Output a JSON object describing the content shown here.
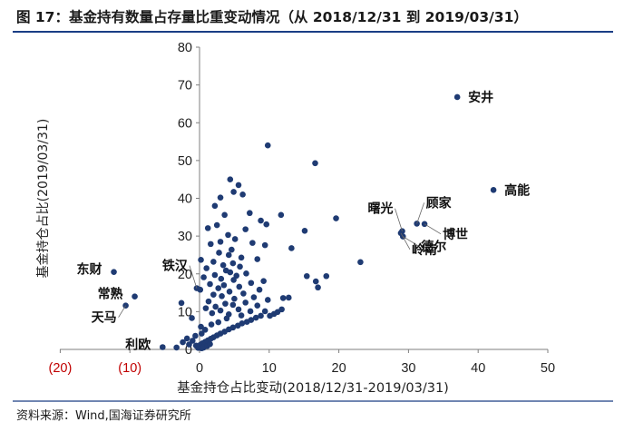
{
  "header": {
    "title": "图 17：基金持有数量占存量比重变动情况（从 2018/12/31 到 2019/03/31）"
  },
  "footer": {
    "source": "资料来源：Wind,国海证券研究所"
  },
  "chart_data": {
    "type": "scatter",
    "title": "",
    "xlabel": "基金持仓占比变动(2018/12/31-2019/03/31)",
    "ylabel": "基金持仓占比(2019/03/31)",
    "xlim": [
      -20,
      50
    ],
    "ylim": [
      0,
      80
    ],
    "x_ticks": [
      {
        "v": -20,
        "label": "(20)"
      },
      {
        "v": -10,
        "label": "(10)"
      },
      {
        "v": 0,
        "label": "0"
      },
      {
        "v": 10,
        "label": "10"
      },
      {
        "v": 20,
        "label": "20"
      },
      {
        "v": 30,
        "label": "30"
      },
      {
        "v": 40,
        "label": "40"
      },
      {
        "v": 50,
        "label": "50"
      }
    ],
    "y_ticks": [
      0,
      10,
      20,
      30,
      40,
      50,
      60,
      70,
      80
    ],
    "grid": false,
    "colors": {
      "point": "#1f3b73",
      "negative_tick": "#c00000",
      "axis": "#7f7f7f"
    },
    "labeled_points": [
      {
        "name": "安井",
        "x": 37.0,
        "y": 66.8,
        "label_side": "right"
      },
      {
        "name": "高能",
        "x": 42.2,
        "y": 42.2,
        "label_side": "right"
      },
      {
        "name": "顾家",
        "x": 31.2,
        "y": 33.3,
        "label_side": "above-right"
      },
      {
        "name": "博世",
        "x": 32.3,
        "y": 33.2,
        "label_side": "right-below"
      },
      {
        "name": "曙光",
        "x": 29.1,
        "y": 31.3,
        "label_side": "above-left"
      },
      {
        "name": "德尔",
        "x": 29.2,
        "y": 29.9,
        "label_side": "right-below"
      },
      {
        "name": "岭南",
        "x": 28.9,
        "y": 30.8,
        "label_side": "below-right"
      },
      {
        "name": "东财",
        "x": -12.3,
        "y": 20.5,
        "label_side": "left"
      },
      {
        "name": "铁汉",
        "x": -0.4,
        "y": 16.2,
        "label_side": "above-left"
      },
      {
        "name": "常熟",
        "x": -9.3,
        "y": 14.0,
        "label_side": "left"
      },
      {
        "name": "天马",
        "x": -10.6,
        "y": 11.6,
        "label_side": "below-left"
      },
      {
        "name": "利欧",
        "x": -5.3,
        "y": 0.6,
        "label_side": "left"
      }
    ],
    "points": [
      {
        "x": 9.8,
        "y": 54.0
      },
      {
        "x": 16.6,
        "y": 49.3
      },
      {
        "x": 4.4,
        "y": 45.0
      },
      {
        "x": 5.6,
        "y": 43.5
      },
      {
        "x": 4.9,
        "y": 41.7
      },
      {
        "x": 6.2,
        "y": 41.0
      },
      {
        "x": 3.0,
        "y": 40.2
      },
      {
        "x": 2.2,
        "y": 38.0
      },
      {
        "x": 7.2,
        "y": 36.1
      },
      {
        "x": 3.6,
        "y": 35.6
      },
      {
        "x": 11.7,
        "y": 35.6
      },
      {
        "x": 19.6,
        "y": 34.7
      },
      {
        "x": 8.8,
        "y": 34.1
      },
      {
        "x": 9.6,
        "y": 33.1
      },
      {
        "x": 2.5,
        "y": 32.9
      },
      {
        "x": 1.2,
        "y": 32.1
      },
      {
        "x": 6.6,
        "y": 31.8
      },
      {
        "x": 15.1,
        "y": 31.4
      },
      {
        "x": 4.1,
        "y": 30.3
      },
      {
        "x": 5.1,
        "y": 29.2
      },
      {
        "x": 3.0,
        "y": 28.5
      },
      {
        "x": 7.6,
        "y": 28.2
      },
      {
        "x": 1.6,
        "y": 27.9
      },
      {
        "x": 9.4,
        "y": 27.6
      },
      {
        "x": 13.2,
        "y": 26.8
      },
      {
        "x": 4.6,
        "y": 26.4
      },
      {
        "x": 2.8,
        "y": 25.6
      },
      {
        "x": 4.2,
        "y": 25.0
      },
      {
        "x": 6.0,
        "y": 24.3
      },
      {
        "x": 8.3,
        "y": 23.9
      },
      {
        "x": 0.2,
        "y": 23.7
      },
      {
        "x": 2.0,
        "y": 23.2
      },
      {
        "x": 4.8,
        "y": 22.8
      },
      {
        "x": 3.4,
        "y": 22.3
      },
      {
        "x": 23.1,
        "y": 23.1
      },
      {
        "x": 5.8,
        "y": 21.9
      },
      {
        "x": 1.0,
        "y": 21.5
      },
      {
        "x": 3.8,
        "y": 20.9
      },
      {
        "x": 4.4,
        "y": 20.4
      },
      {
        "x": 6.7,
        "y": 20.1
      },
      {
        "x": 2.2,
        "y": 19.7
      },
      {
        "x": 5.3,
        "y": 19.5
      },
      {
        "x": 15.4,
        "y": 19.4
      },
      {
        "x": 18.2,
        "y": 19.4
      },
      {
        "x": 0.6,
        "y": 19.1
      },
      {
        "x": 3.1,
        "y": 18.7
      },
      {
        "x": 4.9,
        "y": 18.4
      },
      {
        "x": 9.2,
        "y": 18.1
      },
      {
        "x": 16.7,
        "y": 18.0
      },
      {
        "x": 7.4,
        "y": 17.6
      },
      {
        "x": 1.5,
        "y": 17.3
      },
      {
        "x": 3.5,
        "y": 17.0
      },
      {
        "x": 5.7,
        "y": 16.6
      },
      {
        "x": 17.0,
        "y": 16.4
      },
      {
        "x": 2.7,
        "y": 16.2
      },
      {
        "x": 8.6,
        "y": 15.8
      },
      {
        "x": 0.1,
        "y": 15.8
      },
      {
        "x": 4.3,
        "y": 15.3
      },
      {
        "x": 6.3,
        "y": 14.8
      },
      {
        "x": 2.0,
        "y": 14.5
      },
      {
        "x": 3.2,
        "y": 14.1
      },
      {
        "x": 7.8,
        "y": 13.8
      },
      {
        "x": 12.8,
        "y": 13.7
      },
      {
        "x": 5.0,
        "y": 13.4
      },
      {
        "x": 9.8,
        "y": 13.1
      },
      {
        "x": 1.3,
        "y": 12.7
      },
      {
        "x": 6.6,
        "y": 12.4
      },
      {
        "x": 3.7,
        "y": 12.1
      },
      {
        "x": -2.6,
        "y": 12.3
      },
      {
        "x": 4.8,
        "y": 11.8
      },
      {
        "x": 8.3,
        "y": 11.6
      },
      {
        "x": 2.3,
        "y": 11.3
      },
      {
        "x": 0.9,
        "y": 10.9
      },
      {
        "x": 5.6,
        "y": 10.6
      },
      {
        "x": 3.0,
        "y": 10.3
      },
      {
        "x": 7.3,
        "y": 10.1
      },
      {
        "x": 1.8,
        "y": 9.6
      },
      {
        "x": 4.2,
        "y": 9.3
      },
      {
        "x": 6.0,
        "y": 9.0
      },
      {
        "x": -1.1,
        "y": 8.3
      },
      {
        "x": 8.8,
        "y": 8.9
      },
      {
        "x": 8.1,
        "y": 8.4
      },
      {
        "x": 7.4,
        "y": 7.8
      },
      {
        "x": 6.8,
        "y": 7.3
      },
      {
        "x": 6.1,
        "y": 6.9
      },
      {
        "x": 5.5,
        "y": 6.3
      },
      {
        "x": 4.8,
        "y": 5.8
      },
      {
        "x": 4.2,
        "y": 5.3
      },
      {
        "x": 3.6,
        "y": 4.7
      },
      {
        "x": 3.0,
        "y": 4.2
      },
      {
        "x": 2.5,
        "y": 3.7
      },
      {
        "x": 2.0,
        "y": 3.2
      },
      {
        "x": 1.6,
        "y": 2.8
      },
      {
        "x": 1.2,
        "y": 2.4
      },
      {
        "x": 0.8,
        "y": 2.0
      },
      {
        "x": 0.4,
        "y": 1.6
      },
      {
        "x": 0.1,
        "y": 1.2
      },
      {
        "x": 0.0,
        "y": 0.8
      },
      {
        "x": -0.2,
        "y": 0.4
      },
      {
        "x": 0.3,
        "y": 0.3
      },
      {
        "x": 0.6,
        "y": 0.5
      },
      {
        "x": 1.1,
        "y": 0.9
      },
      {
        "x": 1.5,
        "y": 1.4
      },
      {
        "x": -2.4,
        "y": 1.9
      },
      {
        "x": -1.0,
        "y": 2.3
      },
      {
        "x": -1.8,
        "y": 2.9
      },
      {
        "x": -0.6,
        "y": 3.6
      },
      {
        "x": 0.3,
        "y": 4.2
      },
      {
        "x": 10.7,
        "y": 9.4
      },
      {
        "x": 11.2,
        "y": 9.9
      },
      {
        "x": 11.8,
        "y": 10.6
      },
      {
        "x": 9.4,
        "y": 10.1
      },
      {
        "x": 10.1,
        "y": 8.9
      },
      {
        "x": 12.0,
        "y": 13.6
      },
      {
        "x": 0.2,
        "y": 6.0
      },
      {
        "x": 2.7,
        "y": 7.2
      },
      {
        "x": 1.7,
        "y": 6.6
      },
      {
        "x": 3.9,
        "y": 8.2
      },
      {
        "x": 0.8,
        "y": 5.2
      },
      {
        "x": -0.5,
        "y": 1.0
      },
      {
        "x": -3.3,
        "y": 0.5
      },
      {
        "x": -1.5,
        "y": 1.3
      }
    ]
  }
}
